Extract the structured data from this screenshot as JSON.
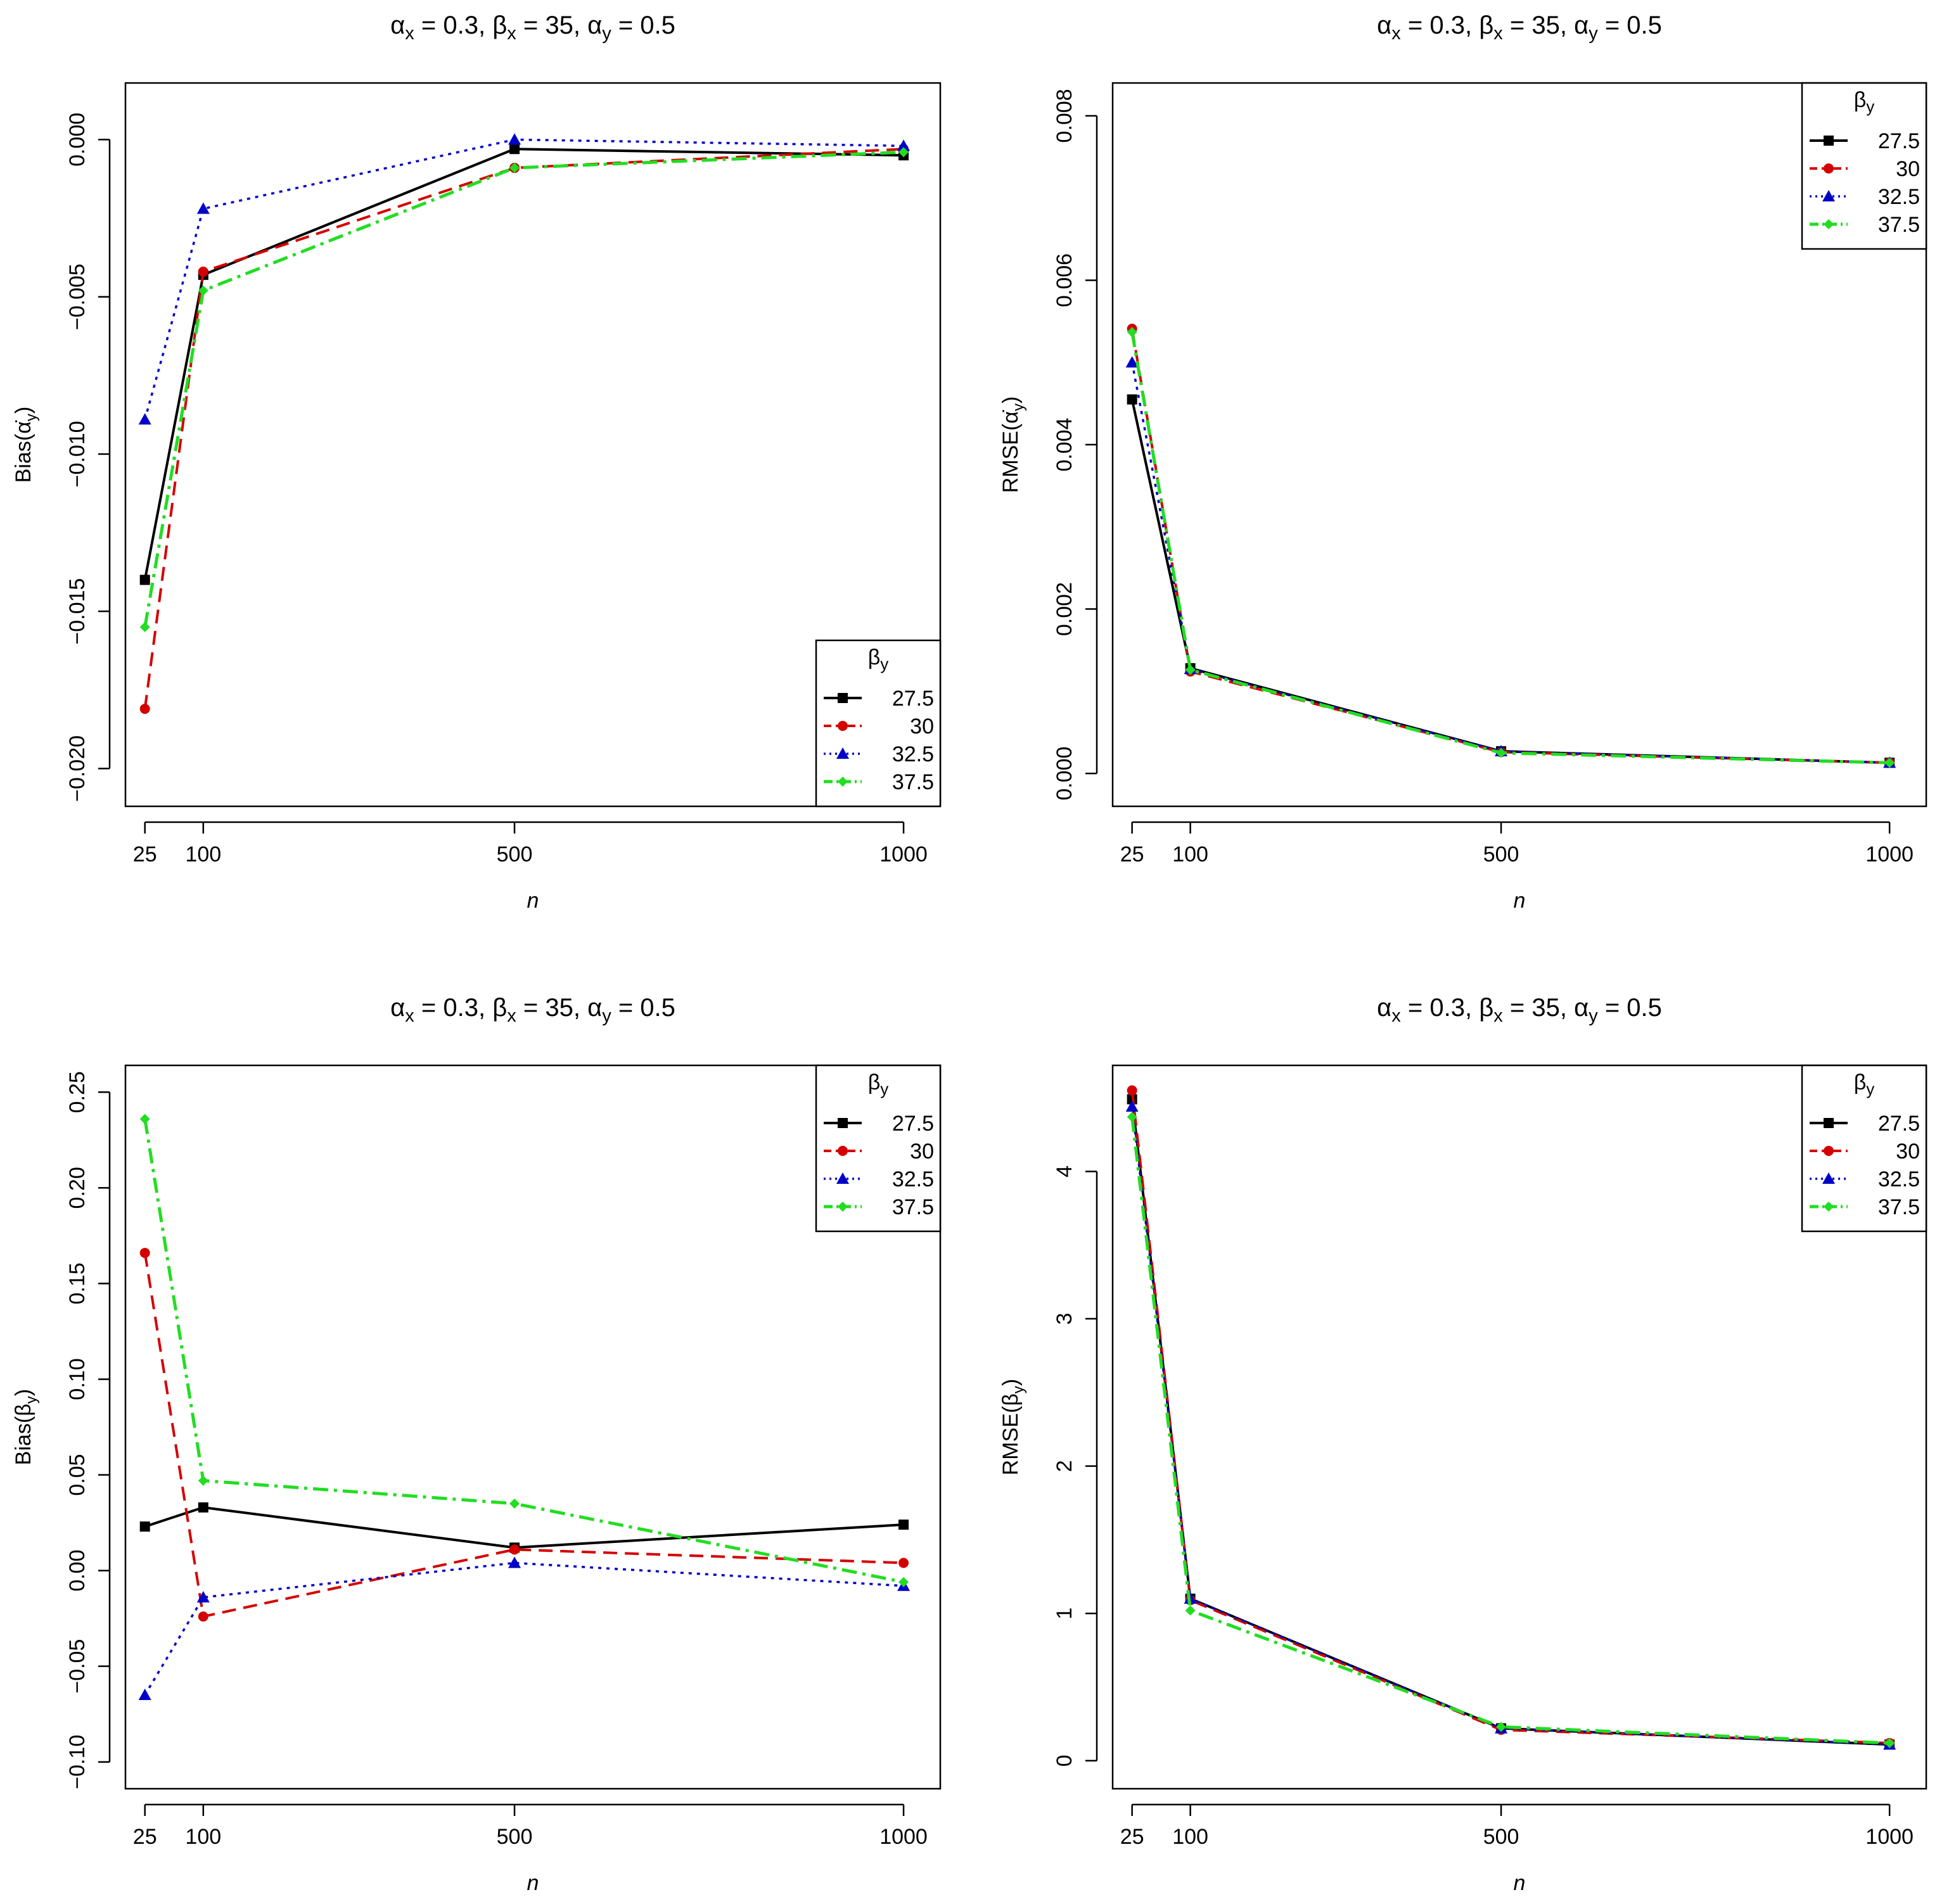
{
  "legend": {
    "title": "βy",
    "entries": [
      "27.5",
      "30",
      "32.5",
      "37.5"
    ]
  },
  "series_style": {
    "27.5": {
      "color": "#000000",
      "marker": "square"
    },
    "30": {
      "color": "#d40000",
      "marker": "circle"
    },
    "32.5": {
      "color": "#0000c8",
      "marker": "triangle"
    },
    "37.5": {
      "color": "#22dd22",
      "marker": "diamond"
    }
  },
  "chart_data": [
    {
      "type": "line",
      "title": "αx = 0.3, βx = 35, αy = 0.5",
      "xlabel": "n",
      "ylabel": "Bias(α̇y)",
      "x": [
        25,
        100,
        500,
        1000
      ],
      "xticks": [
        "25",
        "100",
        "500",
        "1000"
      ],
      "ylim": [
        -0.0212,
        0.0018
      ],
      "yticks": [
        -0.02,
        -0.015,
        -0.01,
        -0.005,
        0.0
      ],
      "ytick_labels": [
        "−0.020",
        "−0.015",
        "−0.010",
        "−0.005",
        "0.000"
      ],
      "legend_position": "bottom-right",
      "series": [
        {
          "name": "27.5",
          "values": [
            -0.014,
            -0.0043,
            -0.0003,
            -0.0005
          ]
        },
        {
          "name": "30",
          "values": [
            -0.0181,
            -0.0042,
            -0.0009,
            -0.0003
          ]
        },
        {
          "name": "32.5",
          "values": [
            -0.0089,
            -0.0022,
            0.0,
            -0.0002
          ]
        },
        {
          "name": "37.5",
          "values": [
            -0.0155,
            -0.0048,
            -0.0009,
            -0.0004
          ]
        }
      ]
    },
    {
      "type": "line",
      "title": "αx = 0.3, βx = 35, αy = 0.5",
      "xlabel": "n",
      "ylabel": "RMSE(α̇y)",
      "x": [
        25,
        100,
        500,
        1000
      ],
      "xticks": [
        "25",
        "100",
        "500",
        "1000"
      ],
      "ylim": [
        -0.0004,
        0.0084
      ],
      "yticks": [
        0.0,
        0.002,
        0.004,
        0.006,
        0.008
      ],
      "ytick_labels": [
        "0.000",
        "0.002",
        "0.004",
        "0.006",
        "0.008"
      ],
      "legend_position": "top-right",
      "series": [
        {
          "name": "27.5",
          "values": [
            0.00455,
            0.00128,
            0.00027,
            0.00013
          ]
        },
        {
          "name": "30",
          "values": [
            0.00541,
            0.00124,
            0.00026,
            0.00013
          ]
        },
        {
          "name": "32.5",
          "values": [
            0.005,
            0.00127,
            0.00027,
            0.00013
          ]
        },
        {
          "name": "37.5",
          "values": [
            0.00537,
            0.00126,
            0.00025,
            0.00013
          ]
        }
      ]
    },
    {
      "type": "line",
      "title": "αx = 0.3, βx = 35, αy = 0.5",
      "xlabel": "n",
      "ylabel": "Bias(βy)",
      "x": [
        25,
        100,
        500,
        1000
      ],
      "xticks": [
        "25",
        "100",
        "500",
        "1000"
      ],
      "ylim": [
        -0.114,
        0.264
      ],
      "yticks": [
        -0.1,
        -0.05,
        0.0,
        0.05,
        0.1,
        0.15,
        0.2,
        0.25
      ],
      "ytick_labels": [
        "−0.10",
        "−0.05",
        "0.00",
        "0.05",
        "0.10",
        "0.15",
        "0.20",
        "0.25"
      ],
      "legend_position": "top-right",
      "series": [
        {
          "name": "27.5",
          "values": [
            0.023,
            0.033,
            0.012,
            0.024
          ]
        },
        {
          "name": "30",
          "values": [
            0.166,
            -0.024,
            0.011,
            0.004
          ]
        },
        {
          "name": "32.5",
          "values": [
            -0.065,
            -0.014,
            0.004,
            -0.008
          ]
        },
        {
          "name": "37.5",
          "values": [
            0.236,
            0.047,
            0.035,
            -0.006
          ]
        }
      ]
    },
    {
      "type": "line",
      "title": "αx = 0.3, βx = 35, αy = 0.5",
      "xlabel": "n",
      "ylabel": "RMSE(βy)",
      "x": [
        25,
        100,
        500,
        1000
      ],
      "xticks": [
        "25",
        "100",
        "500",
        "1000"
      ],
      "ylim": [
        -0.19,
        4.72
      ],
      "yticks": [
        0,
        1,
        2,
        3,
        4
      ],
      "ytick_labels": [
        "0",
        "1",
        "2",
        "3",
        "4"
      ],
      "legend_position": "top-right",
      "series": [
        {
          "name": "27.5",
          "values": [
            4.49,
            1.1,
            0.22,
            0.11
          ]
        },
        {
          "name": "30",
          "values": [
            4.55,
            1.09,
            0.21,
            0.12
          ]
        },
        {
          "name": "32.5",
          "values": [
            4.44,
            1.1,
            0.22,
            0.11
          ]
        },
        {
          "name": "37.5",
          "values": [
            4.37,
            1.02,
            0.23,
            0.12
          ]
        }
      ]
    }
  ]
}
